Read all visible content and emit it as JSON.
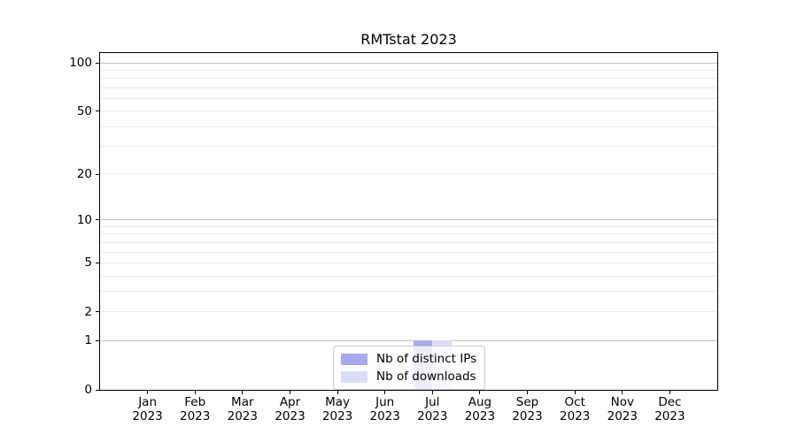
{
  "chart_data": {
    "type": "bar",
    "title": "RMTstat 2023",
    "categories": [
      "Jan 2023",
      "Feb 2023",
      "Mar 2023",
      "Apr 2023",
      "May 2023",
      "Jun 2023",
      "Jul 2023",
      "Aug 2023",
      "Sep 2023",
      "Oct 2023",
      "Nov 2023",
      "Dec 2023"
    ],
    "x_tick_labels": [
      {
        "line1": "Jan",
        "line2": "2023"
      },
      {
        "line1": "Feb",
        "line2": "2023"
      },
      {
        "line1": "Mar",
        "line2": "2023"
      },
      {
        "line1": "Apr",
        "line2": "2023"
      },
      {
        "line1": "May",
        "line2": "2023"
      },
      {
        "line1": "Jun",
        "line2": "2023"
      },
      {
        "line1": "Jul",
        "line2": "2023"
      },
      {
        "line1": "Aug",
        "line2": "2023"
      },
      {
        "line1": "Sep",
        "line2": "2023"
      },
      {
        "line1": "Oct",
        "line2": "2023"
      },
      {
        "line1": "Nov",
        "line2": "2023"
      },
      {
        "line1": "Dec",
        "line2": "2023"
      }
    ],
    "series": [
      {
        "name": "Nb of distinct IPs",
        "color": "#a9a9ec",
        "values": [
          0,
          0,
          0,
          0,
          0,
          0,
          1,
          0,
          0,
          0,
          0,
          0
        ]
      },
      {
        "name": "Nb of downloads",
        "color": "#dcdcf7",
        "values": [
          0,
          0,
          0,
          0,
          0,
          0,
          1,
          0,
          0,
          0,
          0,
          0
        ]
      }
    ],
    "y_axis": {
      "scale": "log1p",
      "tick_values": [
        0,
        1,
        2,
        5,
        10,
        20,
        50,
        100
      ],
      "tick_labels": [
        "0",
        "1",
        "2",
        "5",
        "10",
        "20",
        "50",
        "100"
      ],
      "major_grid_values": [
        1,
        10,
        100
      ],
      "minor_grid_values": [
        2,
        3,
        4,
        5,
        6,
        7,
        8,
        9,
        20,
        30,
        40,
        50,
        60,
        70,
        80,
        90
      ],
      "ylim": [
        0,
        115
      ]
    },
    "xlabel": "",
    "ylabel": "",
    "grid": true,
    "legend": {
      "position": "lower center",
      "entries": [
        "Nb of distinct IPs",
        "Nb of downloads"
      ]
    },
    "colors": {
      "major_grid": "#c4c4c4",
      "minor_grid": "#ebebeb",
      "spine": "#000000",
      "text": "#000000"
    }
  }
}
